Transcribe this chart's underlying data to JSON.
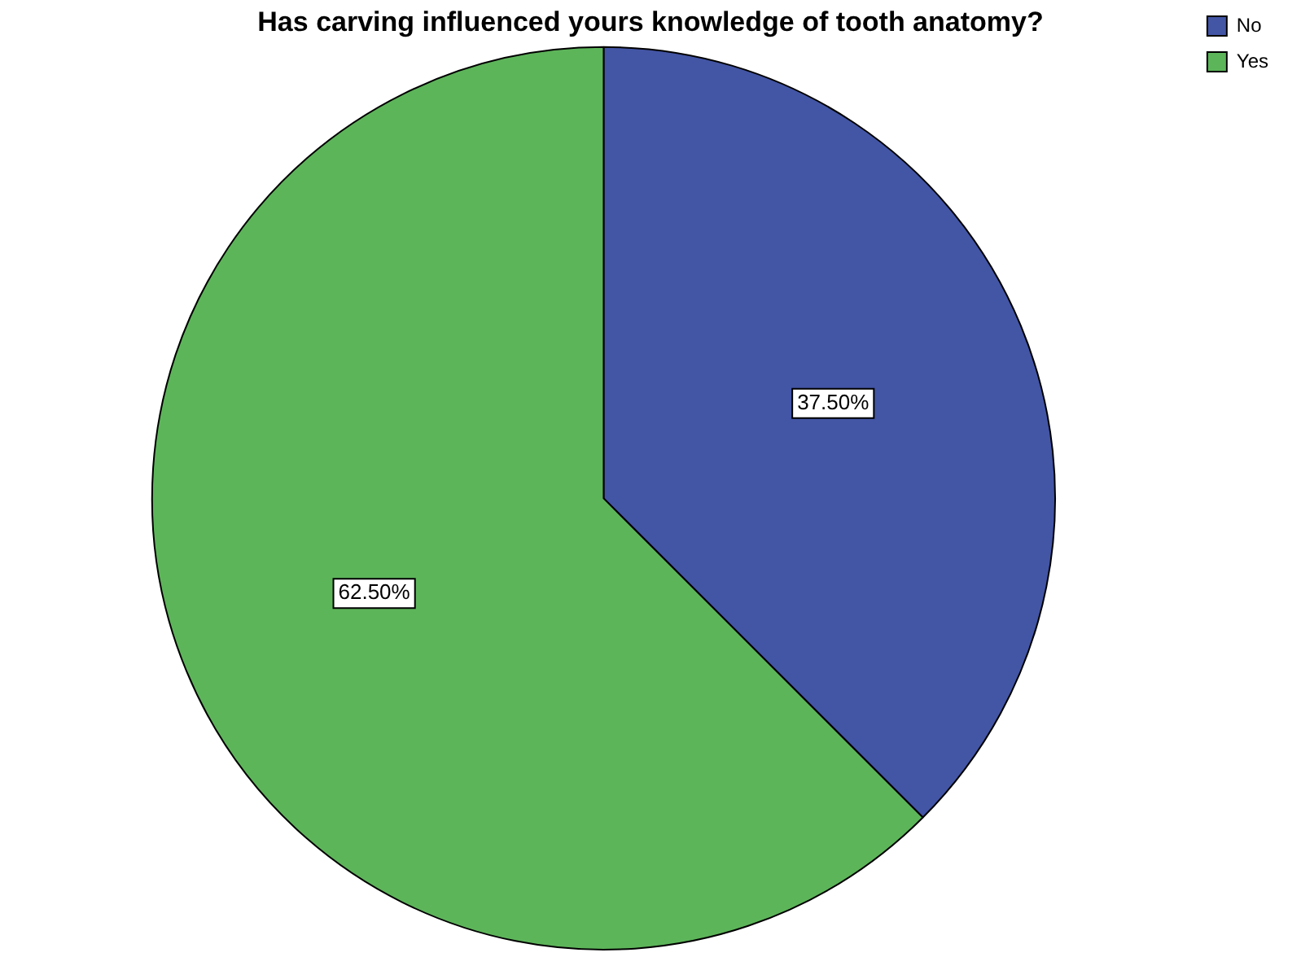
{
  "chart_data": {
    "type": "pie",
    "title": "Has carving influenced yours knowledge of tooth anatomy?",
    "categories": [
      "No",
      "Yes"
    ],
    "values": [
      37.5,
      62.5
    ],
    "value_labels": [
      "37.50%",
      "62.50%"
    ],
    "colors": [
      "#4355a5",
      "#5db55a"
    ],
    "legend": "top right"
  }
}
